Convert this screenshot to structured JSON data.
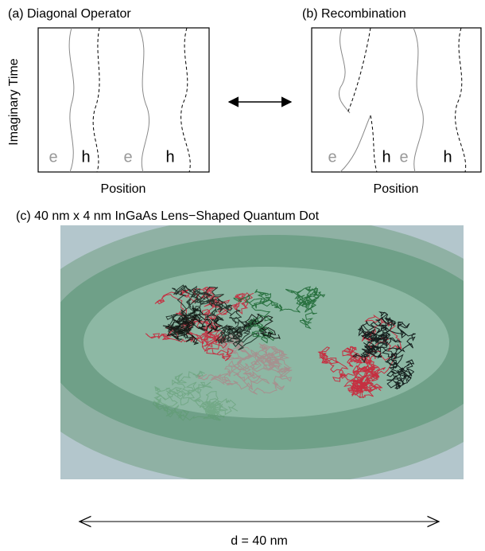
{
  "panels": [
    {
      "title": "(a) Diagonal Operator",
      "y_label": "Imaginary Time",
      "x_label": "Position",
      "particles": [
        "e",
        "h",
        "e",
        "h"
      ]
    },
    {
      "title": "(b) Recombination",
      "x_label": "Position",
      "particles": [
        "e",
        "h",
        "e",
        "h"
      ]
    },
    {
      "title": "(c) 40 nm x 4 nm InGaAs Lens−Shaped Quantum Dot",
      "scale_label": "d = 40 nm"
    }
  ]
}
